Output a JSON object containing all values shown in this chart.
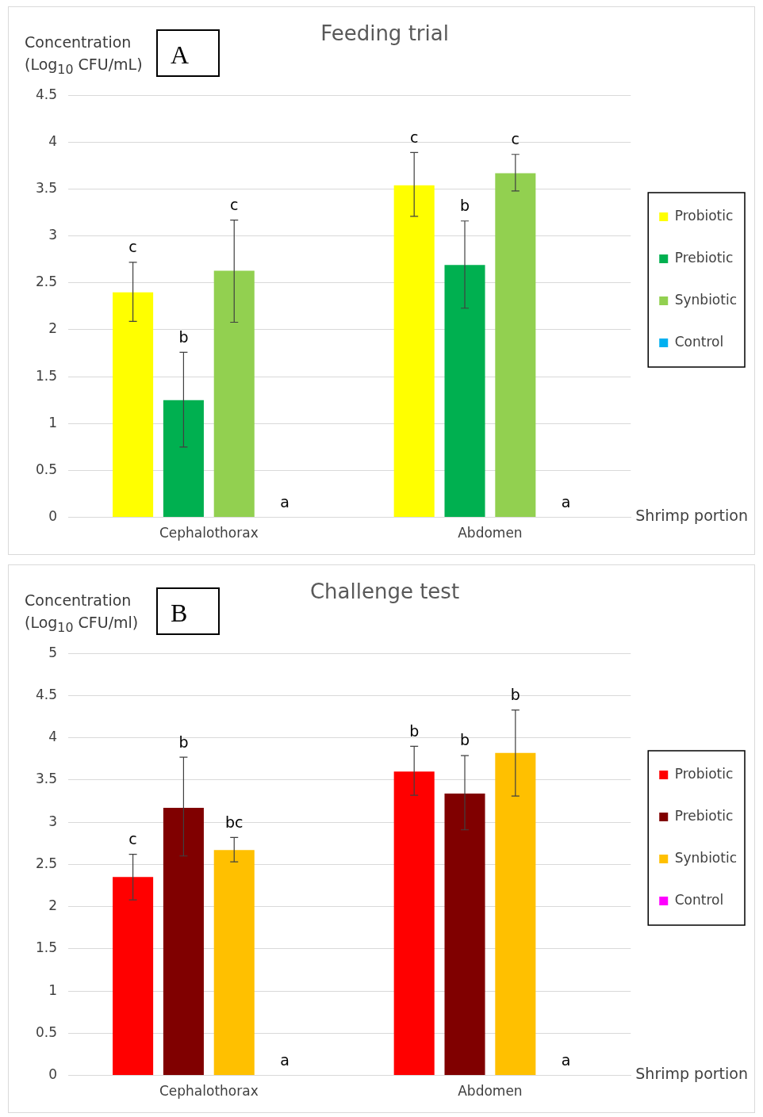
{
  "chart_data": [
    {
      "type": "bar",
      "title": "Feeding trial",
      "xlabel": "Shrimp portion",
      "ylabel": "Concentration (Log$_{10}$ CFU/mL)",
      "annotations": [
        "A",
        "c",
        "b",
        "c",
        "a",
        "c",
        "b",
        "c",
        "a"
      ],
      "categories": [
        "Cephalothorax",
        "Abdomen"
      ],
      "series": [
        {
          "name": "Probiotic",
          "color": "#ffff00",
          "values": [
            2.4,
            3.54
          ],
          "errors": [
            [
              2.09,
              2.72
            ],
            [
              3.21,
              3.89
            ]
          ]
        },
        {
          "name": "Prebiotic",
          "color": "#00b050",
          "values": [
            1.25,
            2.69
          ],
          "errors": [
            [
              0.75,
              1.76
            ],
            [
              2.23,
              3.16
            ]
          ]
        },
        {
          "name": "Synbiotic",
          "color": "#92d050",
          "values": [
            2.63,
            3.67
          ],
          "errors": [
            [
              2.08,
              3.17
            ],
            [
              3.48,
              3.87
            ]
          ]
        },
        {
          "name": "Control",
          "color": "#00b0f0",
          "values": [
            0,
            0
          ],
          "errors": [
            null,
            null
          ]
        }
      ],
      "ylim": [
        0,
        4.5
      ],
      "yticks": [
        0,
        0.5,
        1,
        1.5,
        2,
        2.5,
        3,
        3.5,
        4,
        4.5
      ],
      "grid": "y",
      "legend": "right"
    },
    {
      "type": "bar",
      "title": "Challenge test",
      "xlabel": "Shrimp portion",
      "ylabel": "Concentration (Log$_{10}$ CFU/ml)",
      "annotations": [
        "B",
        "c",
        "b",
        "bc",
        "a",
        "b",
        "b",
        "b",
        "a"
      ],
      "categories": [
        "Cephalothorax",
        "Abdomen"
      ],
      "series": [
        {
          "name": "Probiotic",
          "color": "#ff0000",
          "values": [
            2.35,
            3.6
          ],
          "errors": [
            [
              2.08,
              2.62
            ],
            [
              3.32,
              3.9
            ]
          ]
        },
        {
          "name": "Prebiotic",
          "color": "#800000",
          "values": [
            3.17,
            3.34
          ],
          "errors": [
            [
              2.6,
              3.77
            ],
            [
              2.91,
              3.79
            ]
          ]
        },
        {
          "name": "Synbiotic",
          "color": "#ffc000",
          "values": [
            2.67,
            3.82
          ],
          "errors": [
            [
              2.53,
              2.82
            ],
            [
              3.31,
              4.33
            ]
          ]
        },
        {
          "name": "Control",
          "color": "#ff00ff",
          "values": [
            0,
            0
          ],
          "errors": [
            null,
            null
          ]
        }
      ],
      "ylim": [
        0,
        5
      ],
      "yticks": [
        0,
        0.5,
        1,
        1.5,
        2,
        2.5,
        3,
        3.5,
        4,
        4.5,
        5
      ],
      "grid": "y",
      "legend": "right"
    }
  ]
}
